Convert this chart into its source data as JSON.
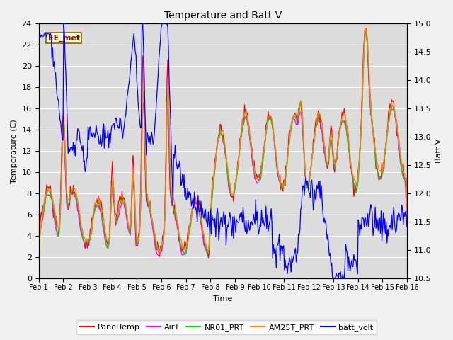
{
  "title": "Temperature and Batt V",
  "xlabel": "Time",
  "ylabel_left": "Temperature (C)",
  "ylabel_right": "Batt V",
  "annotation": "EE_met",
  "left_ylim": [
    0,
    24
  ],
  "right_ylim": [
    10.5,
    15.0
  ],
  "left_yticks": [
    0,
    2,
    4,
    6,
    8,
    10,
    12,
    14,
    16,
    18,
    20,
    22,
    24
  ],
  "right_yticks": [
    10.5,
    11.0,
    11.5,
    12.0,
    12.5,
    13.0,
    13.5,
    14.0,
    14.5,
    15.0
  ],
  "xtick_labels": [
    "Feb 1",
    "Feb 2",
    "Feb 3",
    "Feb 4",
    "Feb 5",
    "Feb 6",
    "Feb 7",
    "Feb 8",
    "Feb 9",
    "Feb 10",
    "Feb 11",
    "Feb 12",
    "Feb 13",
    "Feb 14",
    "Feb 15",
    "Feb 16"
  ],
  "legend": [
    {
      "label": "PanelTemp",
      "color": "#ff0000"
    },
    {
      "label": "AirT",
      "color": "#ff00ff"
    },
    {
      "label": "NR01_PRT",
      "color": "#00dd00"
    },
    {
      "label": "AM25T_PRT",
      "color": "#ff8800"
    },
    {
      "label": "batt_volt",
      "color": "#0000ff"
    }
  ],
  "bg_color": "#dcdcdc",
  "fig_bg_color": "#f0f0f0",
  "grid_color": "#ffffff"
}
